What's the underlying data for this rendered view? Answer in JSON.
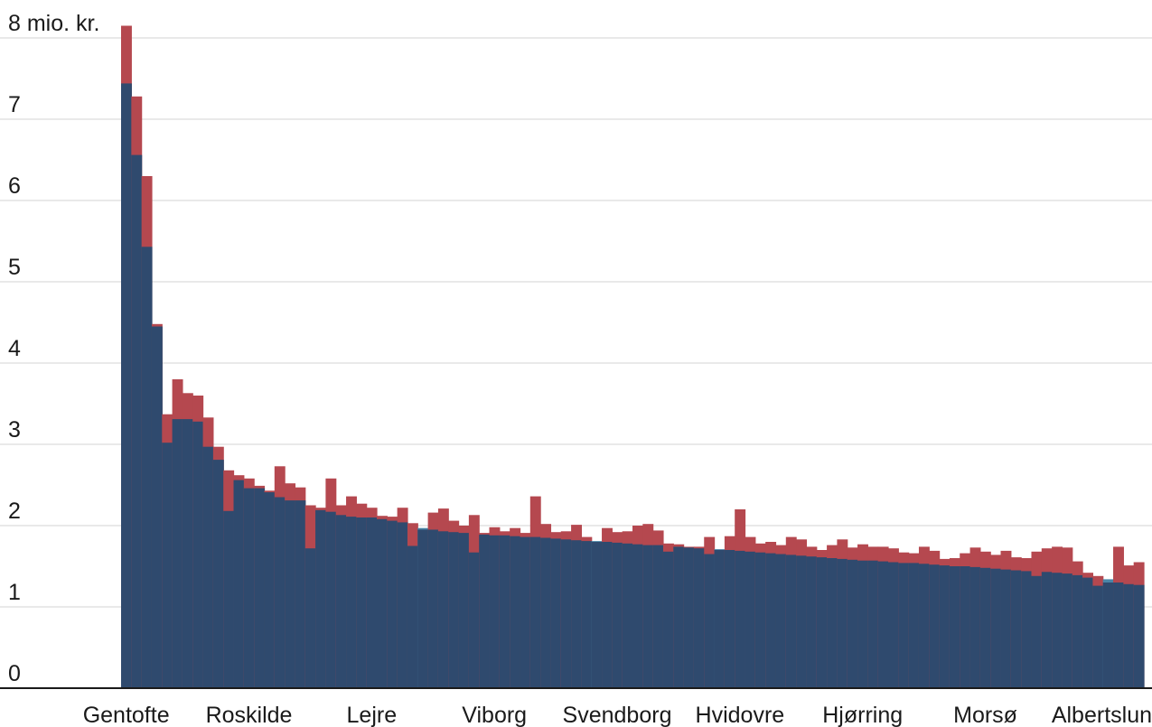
{
  "chart_data": {
    "type": "bar",
    "title": "",
    "xlabel": "",
    "ylabel": "",
    "y_unit_label": "8 mio. kr.",
    "ylim": [
      0,
      8
    ],
    "yticks": [
      {
        "value": 0,
        "label": "0"
      },
      {
        "value": 1,
        "label": "1"
      },
      {
        "value": 2,
        "label": "2"
      },
      {
        "value": 3,
        "label": "3"
      },
      {
        "value": 4,
        "label": "4"
      },
      {
        "value": 5,
        "label": "5"
      },
      {
        "value": 6,
        "label": "6"
      },
      {
        "value": 7,
        "label": "7"
      },
      {
        "value": 8,
        "label": "8 mio. kr."
      }
    ],
    "grid": true,
    "legend": "none",
    "colors": {
      "overlap": "#2f4a6e",
      "series_red": "#b5484f",
      "series_blue": "#4a86a8",
      "grid": "#dcdcdc",
      "baseline": "#1a1a1a"
    },
    "category_labels": [
      {
        "index": 0,
        "label": "Gentofte"
      },
      {
        "index": 12,
        "label": "Roskilde"
      },
      {
        "index": 24,
        "label": "Lejre"
      },
      {
        "index": 36,
        "label": "Viborg"
      },
      {
        "index": 48,
        "label": "Svendborg"
      },
      {
        "index": 60,
        "label": "Hvidovre"
      },
      {
        "index": 72,
        "label": "Hjørring"
      },
      {
        "index": 84,
        "label": "Morsø"
      },
      {
        "index": 96,
        "label": "Albertslund"
      }
    ],
    "series": [
      {
        "color_key": "series_red",
        "values": [
          8.15,
          7.28,
          6.3,
          4.48,
          3.37,
          3.8,
          3.63,
          3.6,
          3.33,
          2.97,
          2.68,
          2.62,
          2.58,
          2.49,
          2.43,
          2.73,
          2.52,
          2.47,
          2.25,
          2.22,
          2.58,
          2.25,
          2.36,
          2.27,
          2.22,
          2.12,
          2.11,
          2.22,
          2.03,
          1.95,
          2.16,
          2.21,
          2.06,
          2.0,
          2.13,
          1.91,
          1.98,
          1.93,
          1.97,
          1.91,
          2.36,
          2.02,
          1.92,
          1.93,
          2.01,
          1.86,
          1.8,
          1.97,
          1.92,
          1.93,
          2.0,
          2.02,
          1.94,
          1.78,
          1.77,
          1.74,
          1.74,
          1.86,
          1.7,
          1.87,
          2.2,
          1.86,
          1.78,
          1.8,
          1.76,
          1.86,
          1.83,
          1.74,
          1.7,
          1.76,
          1.83,
          1.73,
          1.77,
          1.74,
          1.74,
          1.72,
          1.67,
          1.66,
          1.74,
          1.69,
          1.59,
          1.6,
          1.66,
          1.73,
          1.68,
          1.64,
          1.69,
          1.61,
          1.6,
          1.68,
          1.72,
          1.74,
          1.73,
          1.56,
          1.42,
          1.38,
          1.3,
          1.74,
          1.51,
          1.55
        ]
      },
      {
        "color_key": "series_blue",
        "values": [
          7.44,
          6.56,
          5.43,
          4.45,
          3.02,
          3.31,
          3.31,
          3.28,
          2.97,
          2.81,
          2.18,
          2.56,
          2.46,
          2.46,
          2.41,
          2.35,
          2.31,
          2.31,
          1.72,
          2.19,
          2.17,
          2.13,
          2.11,
          2.1,
          2.1,
          2.08,
          2.06,
          2.04,
          1.75,
          1.97,
          1.95,
          1.93,
          1.92,
          1.91,
          1.67,
          1.89,
          1.88,
          1.88,
          1.87,
          1.86,
          1.86,
          1.85,
          1.84,
          1.83,
          1.82,
          1.81,
          1.81,
          1.8,
          1.79,
          1.78,
          1.77,
          1.76,
          1.76,
          1.68,
          1.74,
          1.73,
          1.72,
          1.65,
          1.71,
          1.7,
          1.69,
          1.68,
          1.67,
          1.66,
          1.65,
          1.64,
          1.63,
          1.62,
          1.61,
          1.6,
          1.59,
          1.58,
          1.57,
          1.57,
          1.56,
          1.55,
          1.54,
          1.54,
          1.53,
          1.52,
          1.51,
          1.5,
          1.5,
          1.49,
          1.48,
          1.47,
          1.46,
          1.45,
          1.44,
          1.38,
          1.43,
          1.42,
          1.41,
          1.39,
          1.36,
          1.26,
          1.34,
          1.3,
          1.28,
          1.27
        ]
      }
    ]
  }
}
